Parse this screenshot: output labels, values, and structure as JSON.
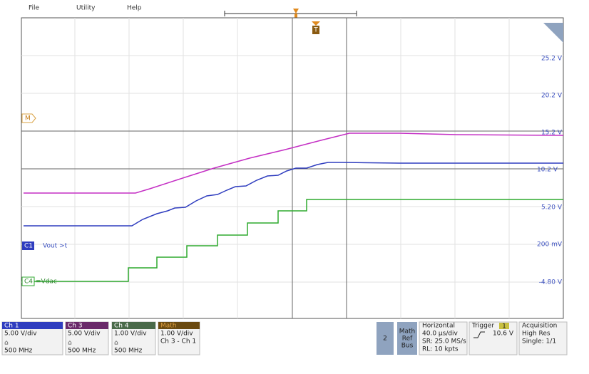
{
  "menu": [
    "File",
    "Utility",
    "Help"
  ],
  "trigger_marker": "T",
  "scale_labels": [
    "25.2 V",
    "20.2 V",
    "15.2 V",
    "10.2 V",
    "5.20 V",
    "200 mV",
    "-4.80 V"
  ],
  "trace_labels": [
    {
      "tag": "M",
      "name": ""
    },
    {
      "tag": "C1",
      "name": "Vout >t"
    },
    {
      "tag": "C4",
      "name": "=Vdac"
    }
  ],
  "channels": [
    {
      "title": "Ch 1",
      "scale": "5.00 V/div",
      "bandwidth": "500 MHz"
    },
    {
      "title": "Ch 3",
      "scale": "5.00 V/div",
      "bandwidth": "500 MHz"
    },
    {
      "title": "Ch 4",
      "scale": "1.00 V/div",
      "bandwidth": "500 MHz"
    },
    {
      "title": "Math",
      "scale": "1.00 V/div",
      "bandwidth": "Ch 3 - Ch 1"
    }
  ],
  "add_button": "2",
  "math_ref_bus": [
    "Math",
    "Ref",
    "Bus"
  ],
  "horizontal": {
    "title": "Horizontal",
    "lines": [
      "40.0 µs/div",
      "SR: 25.0 MS/s",
      "RL: 10 kpts"
    ]
  },
  "trigger": {
    "title": "Trigger",
    "source": "1",
    "level": "10.6 V"
  },
  "acquisition": {
    "title": "Acquisition",
    "lines": [
      "High Res",
      "Single: 1/1"
    ]
  }
}
